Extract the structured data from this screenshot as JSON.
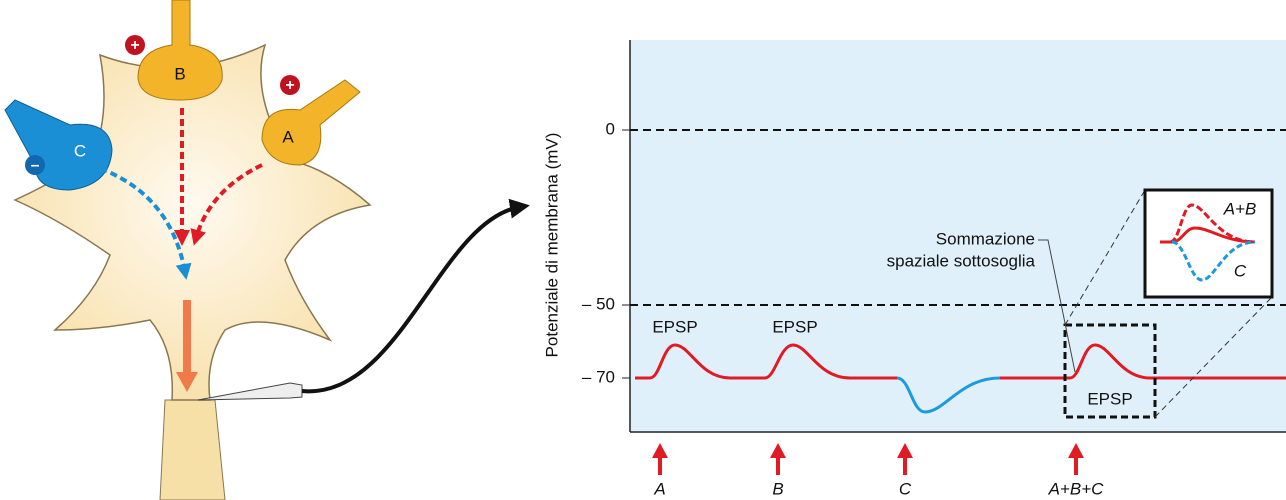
{
  "neuron": {
    "terminals": [
      {
        "label": "B",
        "sign": "+"
      },
      {
        "label": "A",
        "sign": "+"
      },
      {
        "label": "C",
        "sign": "–"
      }
    ]
  },
  "graph": {
    "y_axis_label": "Potenziale di membrana (mV)",
    "y_tick_labels": [
      "0",
      "– 50",
      "– 70"
    ],
    "peak_labels": [
      "EPSP",
      "EPSP",
      "EPSP"
    ],
    "annotation": [
      "Sommazione",
      "spaziale sottosoglia"
    ],
    "inset_labels": [
      "A+B",
      "C"
    ],
    "stimulus_labels": [
      "A",
      "B",
      "C",
      "A+B+C"
    ]
  }
}
